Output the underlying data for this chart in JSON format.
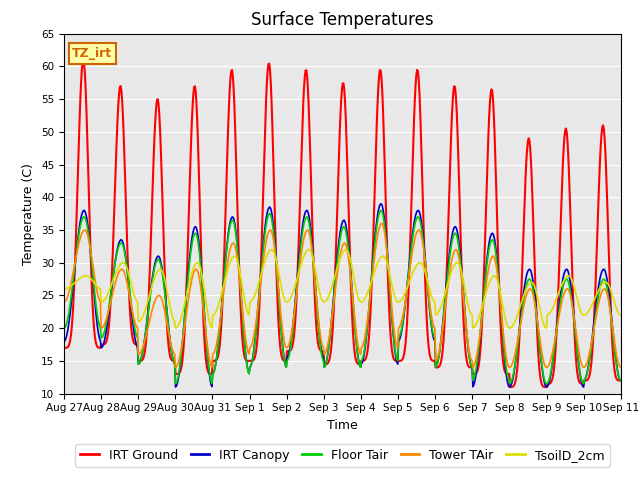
{
  "title": "Surface Temperatures",
  "xlabel": "Time",
  "ylabel": "Temperature (C)",
  "ylim": [
    10,
    65
  ],
  "series": [
    {
      "label": "IRT Ground",
      "color": "#ff0000"
    },
    {
      "label": "IRT Canopy",
      "color": "#0000cc"
    },
    {
      "label": "Floor Tair",
      "color": "#00cc00"
    },
    {
      "label": "Tower TAir",
      "color": "#ff8800"
    },
    {
      "label": "TsoilD_2cm",
      "color": "#dddd00"
    }
  ],
  "xtick_labels": [
    "Aug 27",
    "Aug 28",
    "Aug 29",
    "Aug 30",
    "Aug 31",
    "Sep 1",
    "Sep 2",
    "Sep 3",
    "Sep 4",
    "Sep 5",
    "Sep 6",
    "Sep 7",
    "Sep 8",
    "Sep 9",
    "Sep 10",
    "Sep 11"
  ],
  "annotation_text": "TZ_irt",
  "annotation_color": "#cc6600",
  "annotation_bg": "#ffffaa",
  "bg_color": "#e8e8e8",
  "fig_bg": "#ffffff",
  "title_fontsize": 12,
  "axis_label_fontsize": 9,
  "tick_fontsize": 7.5,
  "legend_fontsize": 9,
  "irt_ground_peaks": [
    61,
    57,
    55,
    57,
    59.5,
    60.5,
    59.5,
    57.5,
    59.5,
    59.5,
    57,
    56.5,
    49,
    50.5,
    51
  ],
  "irt_ground_troughs": [
    17,
    17.5,
    15,
    13,
    15,
    15,
    16.5,
    14.5,
    15,
    15,
    14,
    13,
    11,
    11.5,
    12
  ],
  "irt_canopy_peaks": [
    38,
    33.5,
    31,
    35.5,
    37,
    38.5,
    38,
    36.5,
    39,
    38,
    35.5,
    34.5,
    29,
    29,
    29
  ],
  "irt_canopy_troughs": [
    18,
    17,
    14.5,
    11,
    13,
    14,
    15.5,
    14,
    14.5,
    18,
    14,
    11,
    11,
    11,
    12
  ],
  "floor_tair_peaks": [
    37,
    33,
    30.5,
    34.5,
    36.5,
    37.5,
    37,
    35.5,
    38,
    37,
    34.5,
    33.5,
    27.5,
    27.5,
    27.5
  ],
  "floor_tair_troughs": [
    20,
    18.5,
    14.5,
    11.5,
    13,
    14,
    15,
    14,
    15,
    18.5,
    14,
    12,
    11.5,
    11.5,
    12
  ],
  "tower_tair_peaks": [
    35,
    29,
    25,
    29,
    33,
    35,
    35,
    33,
    36,
    35,
    32,
    31,
    26,
    26,
    26
  ],
  "tower_tair_troughs": [
    24,
    20,
    16,
    14,
    16,
    17,
    17,
    16,
    17,
    20,
    15,
    14,
    14,
    14,
    14
  ],
  "tsoil_peaks": [
    28,
    30,
    29,
    30,
    31,
    32,
    32,
    32,
    31,
    30,
    30,
    28,
    27,
    28,
    27
  ],
  "tsoil_troughs": [
    26,
    24,
    21,
    20,
    22,
    24,
    24,
    24,
    24,
    24,
    22,
    20,
    20,
    22,
    22
  ]
}
